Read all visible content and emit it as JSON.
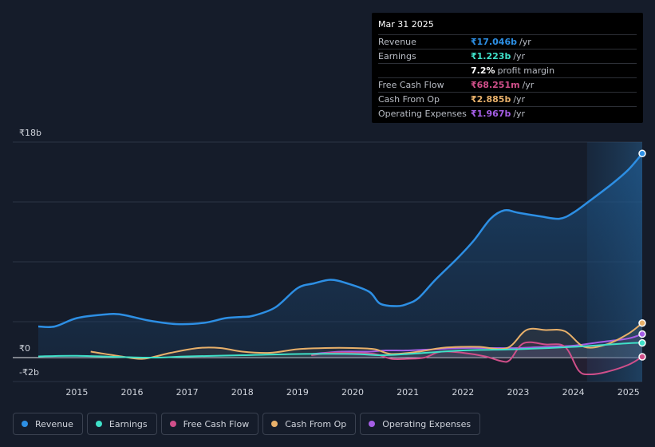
{
  "chart_data": {
    "type": "area",
    "title": "",
    "currency": "₹",
    "y_axis": {
      "top_label": "₹18b",
      "zero_label": "₹0",
      "bottom_label": "-₹2b",
      "ylim": [
        -2,
        18
      ]
    },
    "x_axis": {
      "ticks": [
        "2015",
        "2016",
        "2017",
        "2018",
        "2019",
        "2020",
        "2021",
        "2022",
        "2023",
        "2024",
        "2025"
      ],
      "xlim": [
        2014.3,
        2025.25
      ]
    },
    "forecast_shade_start": 2024.25,
    "series": [
      {
        "name": "Revenue",
        "color": "#2d8fe4",
        "fill": true,
        "points": [
          [
            2014.3,
            2.6
          ],
          [
            2014.6,
            2.6
          ],
          [
            2015.0,
            3.3
          ],
          [
            2015.5,
            3.6
          ],
          [
            2015.8,
            3.6
          ],
          [
            2016.3,
            3.1
          ],
          [
            2016.8,
            2.8
          ],
          [
            2017.3,
            2.9
          ],
          [
            2017.7,
            3.3
          ],
          [
            2018.0,
            3.4
          ],
          [
            2018.2,
            3.5
          ],
          [
            2018.6,
            4.2
          ],
          [
            2019.0,
            5.8
          ],
          [
            2019.3,
            6.2
          ],
          [
            2019.6,
            6.5
          ],
          [
            2019.9,
            6.2
          ],
          [
            2020.3,
            5.5
          ],
          [
            2020.5,
            4.5
          ],
          [
            2020.8,
            4.3
          ],
          [
            2021.0,
            4.5
          ],
          [
            2021.2,
            5.0
          ],
          [
            2021.5,
            6.5
          ],
          [
            2021.9,
            8.3
          ],
          [
            2022.2,
            9.8
          ],
          [
            2022.5,
            11.6
          ],
          [
            2022.75,
            12.3
          ],
          [
            2023.0,
            12.1
          ],
          [
            2023.4,
            11.8
          ],
          [
            2023.75,
            11.6
          ],
          [
            2024.0,
            12.1
          ],
          [
            2024.3,
            13.1
          ],
          [
            2024.7,
            14.5
          ],
          [
            2025.0,
            15.7
          ],
          [
            2025.25,
            17.046
          ]
        ]
      },
      {
        "name": "Earnings",
        "color": "#3fe0c8",
        "fill": false,
        "points": [
          [
            2014.3,
            0.1
          ],
          [
            2015.0,
            0.15
          ],
          [
            2016.3,
            0.0
          ],
          [
            2017.0,
            0.1
          ],
          [
            2018.0,
            0.2
          ],
          [
            2019.0,
            0.3
          ],
          [
            2020.0,
            0.3
          ],
          [
            2020.5,
            0.2
          ],
          [
            2021.0,
            0.3
          ],
          [
            2022.0,
            0.6
          ],
          [
            2023.0,
            0.7
          ],
          [
            2024.0,
            0.9
          ],
          [
            2025.0,
            1.2
          ],
          [
            2025.25,
            1.223
          ]
        ]
      },
      {
        "name": "Free Cash Flow",
        "color": "#d04f8a",
        "fill": false,
        "points": [
          [
            2019.25,
            0.2
          ],
          [
            2019.6,
            0.4
          ],
          [
            2020.0,
            0.4
          ],
          [
            2020.4,
            0.3
          ],
          [
            2020.7,
            -0.1
          ],
          [
            2021.0,
            -0.1
          ],
          [
            2021.3,
            0.0
          ],
          [
            2021.6,
            0.5
          ],
          [
            2022.0,
            0.4
          ],
          [
            2022.4,
            0.1
          ],
          [
            2022.7,
            -0.3
          ],
          [
            2022.85,
            -0.2
          ],
          [
            2023.1,
            1.2
          ],
          [
            2023.5,
            1.1
          ],
          [
            2023.85,
            0.9
          ],
          [
            2024.1,
            -1.1
          ],
          [
            2024.3,
            -1.4
          ],
          [
            2024.6,
            -1.2
          ],
          [
            2025.0,
            -0.6
          ],
          [
            2025.25,
            0.068
          ]
        ]
      },
      {
        "name": "Cash From Op",
        "color": "#e8b06a",
        "fill": false,
        "points": [
          [
            2015.25,
            0.5
          ],
          [
            2015.8,
            0.1
          ],
          [
            2016.2,
            -0.1
          ],
          [
            2016.7,
            0.4
          ],
          [
            2017.2,
            0.8
          ],
          [
            2017.6,
            0.8
          ],
          [
            2018.0,
            0.5
          ],
          [
            2018.5,
            0.4
          ],
          [
            2019.0,
            0.7
          ],
          [
            2019.5,
            0.8
          ],
          [
            2020.0,
            0.8
          ],
          [
            2020.4,
            0.7
          ],
          [
            2020.7,
            0.3
          ],
          [
            2021.2,
            0.5
          ],
          [
            2021.6,
            0.8
          ],
          [
            2022.0,
            0.9
          ],
          [
            2022.3,
            0.9
          ],
          [
            2022.8,
            0.8
          ],
          [
            2023.15,
            2.3
          ],
          [
            2023.5,
            2.3
          ],
          [
            2023.85,
            2.2
          ],
          [
            2024.2,
            0.9
          ],
          [
            2024.6,
            1.1
          ],
          [
            2025.0,
            2.0
          ],
          [
            2025.25,
            2.885
          ]
        ]
      },
      {
        "name": "Operating Expenses",
        "color": "#a55ee6",
        "fill": false,
        "points": [
          [
            2019.25,
            0.3
          ],
          [
            2019.8,
            0.5
          ],
          [
            2020.3,
            0.5
          ],
          [
            2020.6,
            0.6
          ],
          [
            2021.0,
            0.6
          ],
          [
            2021.5,
            0.7
          ],
          [
            2022.0,
            0.8
          ],
          [
            2022.5,
            0.8
          ],
          [
            2023.0,
            0.8
          ],
          [
            2023.5,
            0.9
          ],
          [
            2024.0,
            1.0
          ],
          [
            2024.5,
            1.3
          ],
          [
            2025.0,
            1.6
          ],
          [
            2025.25,
            1.967
          ]
        ]
      }
    ]
  },
  "tooltip": {
    "date": "Mar 31 2025",
    "rows": [
      {
        "label": "Revenue",
        "value": "₹17.046b",
        "unit": "/yr",
        "color": "#2d8fe4"
      },
      {
        "label": "Earnings",
        "value": "₹1.223b",
        "unit": "/yr",
        "color": "#3fe0c8"
      },
      {
        "label": "",
        "value": "7.2%",
        "unit": "profit margin",
        "color": "#ffffff"
      },
      {
        "label": "Free Cash Flow",
        "value": "₹68.251m",
        "unit": "/yr",
        "color": "#d04f8a"
      },
      {
        "label": "Cash From Op",
        "value": "₹2.885b",
        "unit": "/yr",
        "color": "#e8b06a"
      },
      {
        "label": "Operating Expenses",
        "value": "₹1.967b",
        "unit": "/yr",
        "color": "#a55ee6"
      }
    ]
  },
  "legend": [
    {
      "label": "Revenue",
      "color": "#2d8fe4"
    },
    {
      "label": "Earnings",
      "color": "#3fe0c8"
    },
    {
      "label": "Free Cash Flow",
      "color": "#d04f8a"
    },
    {
      "label": "Cash From Op",
      "color": "#e8b06a"
    },
    {
      "label": "Operating Expenses",
      "color": "#a55ee6"
    }
  ]
}
